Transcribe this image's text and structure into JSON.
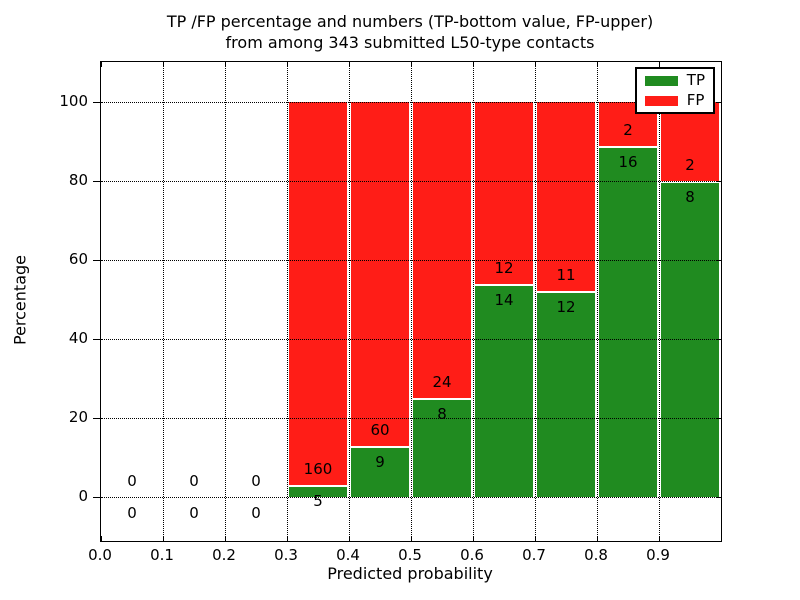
{
  "figure": {
    "title_line1": "TP /FP percentage and numbers (TP-bottom value, FP-upper)",
    "title_line2": "from among 343 submitted L50-type contacts"
  },
  "chart_data": {
    "type": "bar",
    "stacked": true,
    "normalized_to_percent": true,
    "title": "TP /FP percentage and numbers (TP-bottom value, FP-upper) from among 343 submitted L50-type contacts",
    "xlabel": "Predicted probability",
    "ylabel": "Percentage",
    "xlim": [
      0.0,
      1.0
    ],
    "ylim": [
      -11,
      110
    ],
    "bin_width": 0.1,
    "grid": "dotted, both axes, drawn over bars",
    "xticks": {
      "values": [
        0.0,
        0.1,
        0.2,
        0.3,
        0.4,
        0.5,
        0.6,
        0.7,
        0.8,
        0.9
      ],
      "labels": [
        "0.0",
        "0.1",
        "0.2",
        "0.3",
        "0.4",
        "0.5",
        "0.6",
        "0.7",
        "0.8",
        "0.9"
      ]
    },
    "yticks": {
      "values": [
        0,
        20,
        40,
        60,
        80,
        100
      ],
      "labels": [
        "0",
        "20",
        "40",
        "60",
        "80",
        "100"
      ]
    },
    "legend": {
      "position": "upper right",
      "entries": [
        {
          "label": "TP",
          "color": "#208b20"
        },
        {
          "label": "FP",
          "color": "#ff1d17"
        }
      ]
    },
    "colors": {
      "tp": "#208b20",
      "fp": "#ff1d17",
      "bar_edge": "#ffffff"
    },
    "total_contacts": 343,
    "bins": [
      {
        "range": "0.0-0.1",
        "tp": 0,
        "fp": 0
      },
      {
        "range": "0.1-0.2",
        "tp": 0,
        "fp": 0
      },
      {
        "range": "0.2-0.3",
        "tp": 0,
        "fp": 0
      },
      {
        "range": "0.3-0.4",
        "tp": 5,
        "fp": 160
      },
      {
        "range": "0.4-0.5",
        "tp": 9,
        "fp": 60
      },
      {
        "range": "0.5-0.6",
        "tp": 8,
        "fp": 24
      },
      {
        "range": "0.6-0.7",
        "tp": 14,
        "fp": 12
      },
      {
        "range": "0.7-0.8",
        "tp": 12,
        "fp": 11
      },
      {
        "range": "0.8-0.9",
        "tp": 16,
        "fp": 2
      },
      {
        "range": "0.9-1.0",
        "tp": 8,
        "fp": 2
      }
    ]
  }
}
